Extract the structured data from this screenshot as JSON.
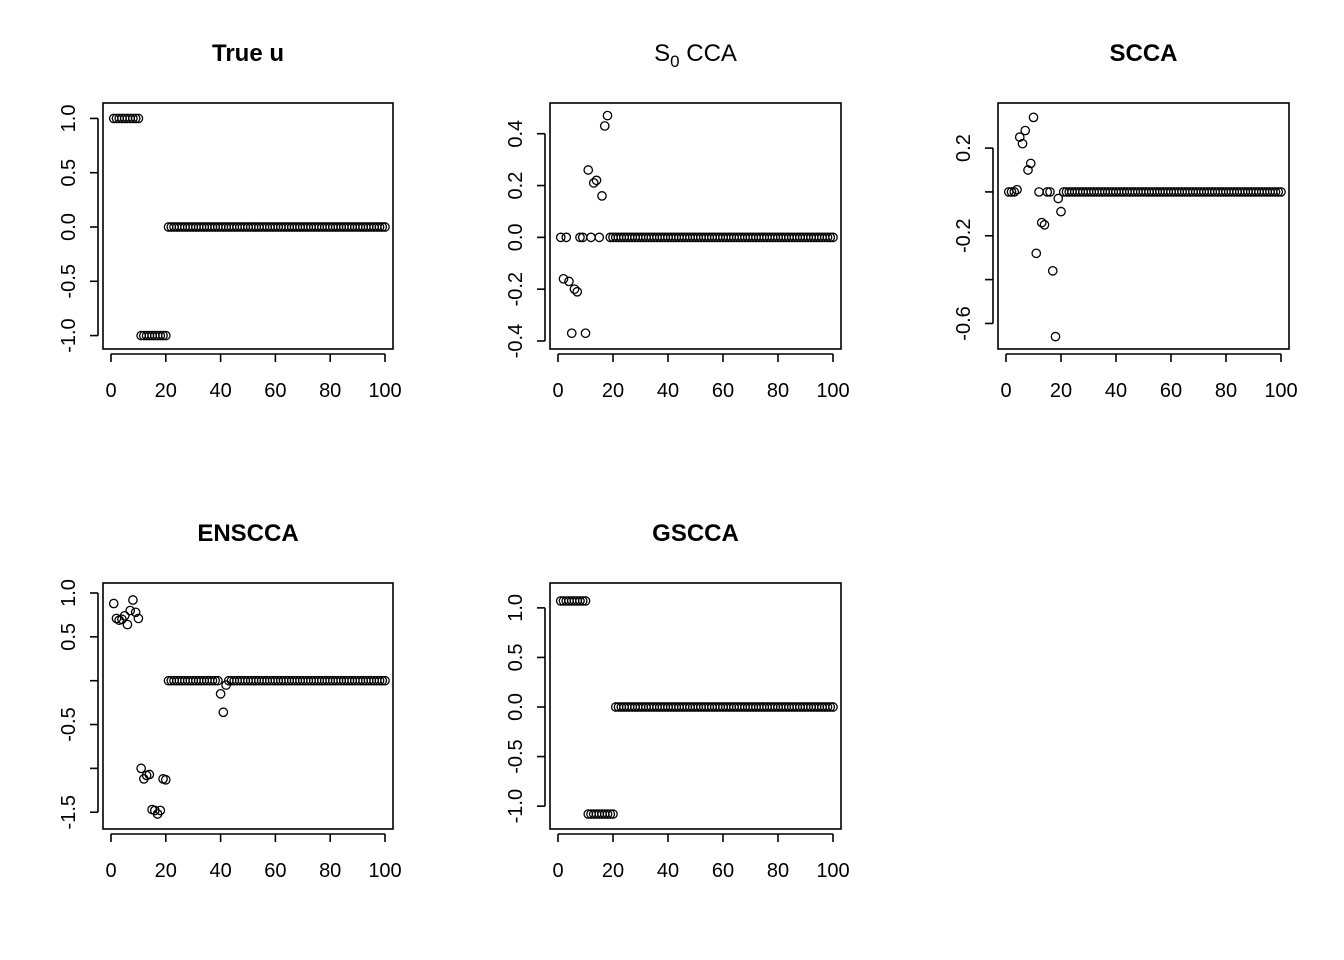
{
  "figure": {
    "layout": "2x3 grid of scatter plots"
  },
  "chart_data": [
    {
      "type": "scatter",
      "title": "True u",
      "title_bold": true,
      "xlim": [
        0,
        100
      ],
      "ylim": [
        -1.05,
        1.05
      ],
      "xticks": [
        0,
        20,
        40,
        60,
        80,
        100
      ],
      "xtick_labels": [
        "0",
        "20",
        "40",
        "60",
        "80",
        "100"
      ],
      "yticks": [
        -1,
        -0.5,
        0,
        0.5,
        1
      ],
      "ytick_labels": [
        "-1.0",
        "-0.5",
        "0.0",
        "0.5",
        "1.0"
      ],
      "x_range": [
        1,
        100
      ],
      "y": [
        1,
        1,
        1,
        1,
        1,
        1,
        1,
        1,
        1,
        1,
        -1,
        -1,
        -1,
        -1,
        -1,
        -1,
        -1,
        -1,
        -1,
        -1,
        0,
        0,
        0,
        0,
        0,
        0,
        0,
        0,
        0,
        0,
        0,
        0,
        0,
        0,
        0,
        0,
        0,
        0,
        0,
        0,
        0,
        0,
        0,
        0,
        0,
        0,
        0,
        0,
        0,
        0,
        0,
        0,
        0,
        0,
        0,
        0,
        0,
        0,
        0,
        0,
        0,
        0,
        0,
        0,
        0,
        0,
        0,
        0,
        0,
        0,
        0,
        0,
        0,
        0,
        0,
        0,
        0,
        0,
        0,
        0,
        0,
        0,
        0,
        0,
        0,
        0,
        0,
        0,
        0,
        0,
        0,
        0,
        0,
        0,
        0,
        0,
        0,
        0,
        0,
        0
      ]
    },
    {
      "type": "scatter",
      "title": "",
      "title_main": "S",
      "title_sub": "0",
      "title_rest": " CCA",
      "title_bold": false,
      "xlim": [
        0,
        100
      ],
      "ylim": [
        -0.4,
        0.48
      ],
      "xticks": [
        0,
        20,
        40,
        60,
        80,
        100
      ],
      "xtick_labels": [
        "0",
        "20",
        "40",
        "60",
        "80",
        "100"
      ],
      "yticks": [
        -0.4,
        -0.2,
        0,
        0.2,
        0.4
      ],
      "ytick_labels": [
        "-0.4",
        "-0.2",
        "0.0",
        "0.2",
        "0.4"
      ],
      "x_range": [
        1,
        100
      ],
      "y": [
        0,
        -0.16,
        0,
        -0.17,
        -0.37,
        -0.2,
        -0.21,
        0,
        0,
        -0.37,
        0.26,
        0,
        0.21,
        0.22,
        0,
        0.16,
        0.43,
        0.47,
        0,
        0,
        0,
        0,
        0,
        0,
        0,
        0,
        0,
        0,
        0,
        0,
        0,
        0,
        0,
        0,
        0,
        0,
        0,
        0,
        0,
        0,
        0,
        0,
        0,
        0,
        0,
        0,
        0,
        0,
        0,
        0,
        0,
        0,
        0,
        0,
        0,
        0,
        0,
        0,
        0,
        0,
        0,
        0,
        0,
        0,
        0,
        0,
        0,
        0,
        0,
        0,
        0,
        0,
        0,
        0,
        0,
        0,
        0,
        0,
        0,
        0,
        0,
        0,
        0,
        0,
        0,
        0,
        0,
        0,
        0,
        0,
        0,
        0,
        0,
        0,
        0,
        0,
        0,
        0,
        0,
        0
      ]
    },
    {
      "type": "scatter",
      "title": "SCCA",
      "title_bold": true,
      "xlim": [
        0,
        100
      ],
      "ylim": [
        -0.68,
        0.36
      ],
      "xticks": [
        0,
        20,
        40,
        60,
        80,
        100
      ],
      "xtick_labels": [
        "0",
        "20",
        "40",
        "60",
        "80",
        "100"
      ],
      "yticks": [
        -0.6,
        -0.4,
        -0.2,
        0,
        0.2
      ],
      "ytick_labels": [
        "-0.6",
        "",
        "-0.2",
        "",
        "0.2"
      ],
      "x_range": [
        1,
        100
      ],
      "y": [
        0,
        0,
        0,
        0.01,
        0.25,
        0.22,
        0.28,
        0.1,
        0.13,
        0.34,
        -0.28,
        0,
        -0.14,
        -0.15,
        0,
        0,
        -0.36,
        -0.66,
        -0.03,
        -0.09,
        0,
        0,
        0,
        0,
        0,
        0,
        0,
        0,
        0,
        0,
        0,
        0,
        0,
        0,
        0,
        0,
        0,
        0,
        0,
        0,
        0,
        0,
        0,
        0,
        0,
        0,
        0,
        0,
        0,
        0,
        0,
        0,
        0,
        0,
        0,
        0,
        0,
        0,
        0,
        0,
        0,
        0,
        0,
        0,
        0,
        0,
        0,
        0,
        0,
        0,
        0,
        0,
        0,
        0,
        0,
        0,
        0,
        0,
        0,
        0,
        0,
        0,
        0,
        0,
        0,
        0,
        0,
        0,
        0,
        0,
        0,
        0,
        0,
        0,
        0,
        0,
        0,
        0,
        0,
        0
      ]
    },
    {
      "type": "scatter",
      "title": "ENSCCA",
      "title_bold": true,
      "xlim": [
        0,
        100
      ],
      "ylim": [
        -1.6,
        1.0
      ],
      "xticks": [
        0,
        20,
        40,
        60,
        80,
        100
      ],
      "xtick_labels": [
        "0",
        "20",
        "40",
        "60",
        "80",
        "100"
      ],
      "yticks": [
        -1.5,
        -1.0,
        -0.5,
        0,
        0.5,
        1.0
      ],
      "ytick_labels": [
        "-1.5",
        "",
        "-0.5",
        "",
        "0.5",
        "1.0"
      ],
      "x_range": [
        1,
        100
      ],
      "y": [
        0.88,
        0.71,
        0.69,
        0.7,
        0.74,
        0.64,
        0.8,
        0.92,
        0.78,
        0.71,
        -1.0,
        -1.12,
        -1.08,
        -1.07,
        -1.47,
        -1.48,
        -1.52,
        -1.48,
        -1.12,
        -1.13,
        0,
        0,
        0,
        0,
        0,
        0,
        0,
        0,
        0,
        0,
        0,
        0,
        0,
        0,
        0,
        0,
        0,
        0,
        0,
        -0.15,
        -0.36,
        -0.05,
        0,
        0,
        0,
        0,
        0,
        0,
        0,
        0,
        0,
        0,
        0,
        0,
        0,
        0,
        0,
        0,
        0,
        0,
        0,
        0,
        0,
        0,
        0,
        0,
        0,
        0,
        0,
        0,
        0,
        0,
        0,
        0,
        0,
        0,
        0,
        0,
        0,
        0,
        0,
        0,
        0,
        0,
        0,
        0,
        0,
        0,
        0,
        0,
        0,
        0,
        0,
        0,
        0,
        0,
        0,
        0,
        0,
        0
      ]
    },
    {
      "type": "scatter",
      "title": "GSCCA",
      "title_bold": true,
      "xlim": [
        0,
        100
      ],
      "ylim": [
        -1.15,
        1.15
      ],
      "xticks": [
        0,
        20,
        40,
        60,
        80,
        100
      ],
      "xtick_labels": [
        "0",
        "20",
        "40",
        "60",
        "80",
        "100"
      ],
      "yticks": [
        -1,
        -0.5,
        0,
        0.5,
        1
      ],
      "ytick_labels": [
        "-1.0",
        "-0.5",
        "0.0",
        "0.5",
        "1.0"
      ],
      "x_range": [
        1,
        100
      ],
      "y": [
        1.07,
        1.07,
        1.07,
        1.07,
        1.07,
        1.07,
        1.07,
        1.07,
        1.07,
        1.07,
        -1.08,
        -1.08,
        -1.08,
        -1.08,
        -1.08,
        -1.08,
        -1.08,
        -1.08,
        -1.08,
        -1.08,
        0,
        0,
        0,
        0,
        0,
        0,
        0,
        0,
        0,
        0,
        0,
        0,
        0,
        0,
        0,
        0,
        0,
        0,
        0,
        0,
        0,
        0,
        0,
        0,
        0,
        0,
        0,
        0,
        0,
        0,
        0,
        0,
        0,
        0,
        0,
        0,
        0,
        0,
        0,
        0,
        0,
        0,
        0,
        0,
        0,
        0,
        0,
        0,
        0,
        0,
        0,
        0,
        0,
        0,
        0,
        0,
        0,
        0,
        0,
        0,
        0,
        0,
        0,
        0,
        0,
        0,
        0,
        0,
        0,
        0,
        0,
        0,
        0,
        0,
        0,
        0,
        0,
        0,
        0,
        0
      ]
    }
  ]
}
